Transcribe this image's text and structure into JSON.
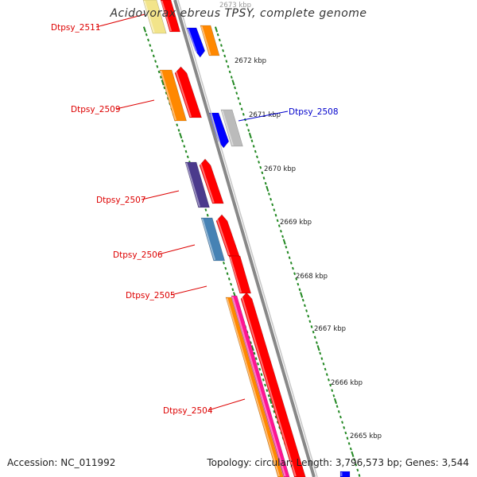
{
  "title": "Acidovorax ebreus TPSY, complete genome",
  "footer": {
    "accession": "Accession: NC_011992",
    "topology": "Topology: circular; Length: 3,796,573 bp; Genes: 3,544"
  },
  "ticks": [
    {
      "label": "2673 kbp"
    },
    {
      "label": "2672 kbp"
    },
    {
      "label": "2671 kbp"
    },
    {
      "label": "2670 kbp"
    },
    {
      "label": "2669 kbp"
    },
    {
      "label": "2668 kbp"
    },
    {
      "label": "2667 kbp"
    },
    {
      "label": "2666 kbp"
    },
    {
      "label": "2665 kbp"
    }
  ],
  "gene_labels": [
    {
      "label": "Dtpsy_2511",
      "color": "#dd0000"
    },
    {
      "label": "Dtpsy_2509",
      "color": "#dd0000"
    },
    {
      "label": "Dtpsy_2508",
      "color": "#0000cc"
    },
    {
      "label": "Dtpsy_2507",
      "color": "#dd0000"
    },
    {
      "label": "Dtpsy_2506",
      "color": "#dd0000"
    },
    {
      "label": "Dtpsy_2505",
      "color": "#dd0000"
    },
    {
      "label": "Dtpsy_2504",
      "color": "#dd0000"
    }
  ],
  "colors": {
    "backbone": "#888888",
    "tick_dash": "#228822",
    "red": "#ff0000",
    "orange": "#ff8800",
    "blue": "#0000ff",
    "gray": "#bbbbbb",
    "yellow": "#f2e48a",
    "purple": "#4b3a8c",
    "steel_blue": "#4682b4",
    "magenta": "#ff1493"
  }
}
